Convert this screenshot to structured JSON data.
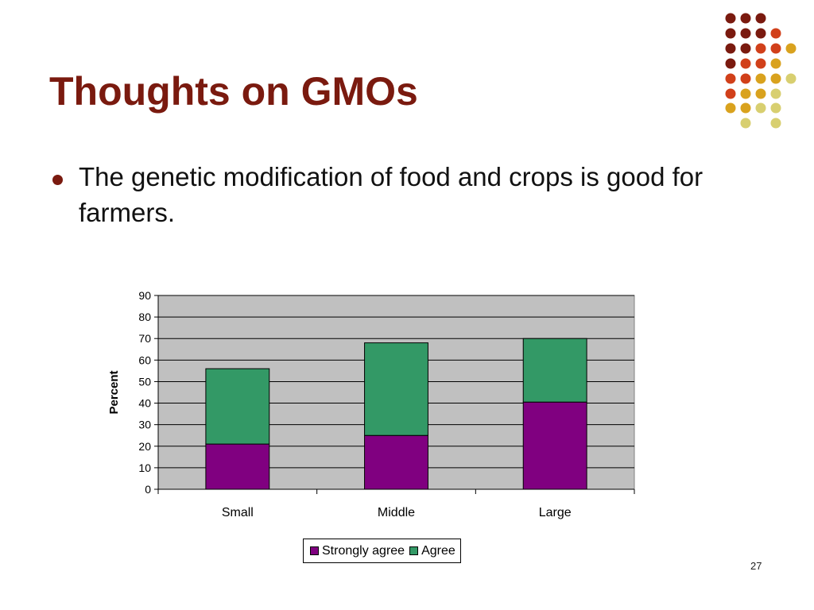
{
  "slide": {
    "title": "Thoughts on GMOs",
    "bullet": "The genetic modification of food and crops is good for farmers.",
    "slide_number": "27"
  },
  "decor": {
    "icon": "dot-grid-icon",
    "colors": [
      "#7a1a0f",
      "#d1401a",
      "#d9a21e",
      "#d8cf70"
    ]
  },
  "colors": {
    "title": "#7a1a0f",
    "plot_background": "#c0c0c0",
    "strongly_agree": "#800080",
    "agree": "#339966"
  },
  "chart_data": {
    "type": "bar",
    "stacked": true,
    "categories": [
      "Small",
      "Middle",
      "Large"
    ],
    "series": [
      {
        "name": "Strongly agree",
        "values": [
          21,
          25,
          40.5
        ],
        "color": "#800080"
      },
      {
        "name": "Agree",
        "values": [
          35,
          43,
          29.5
        ],
        "color": "#339966"
      }
    ],
    "title": "",
    "xlabel": "",
    "ylabel": "Percent",
    "ylim": [
      0,
      90
    ],
    "yticks": [
      0,
      10,
      20,
      30,
      40,
      50,
      60,
      70,
      80,
      90
    ],
    "grid": true,
    "legend": "bottom"
  }
}
